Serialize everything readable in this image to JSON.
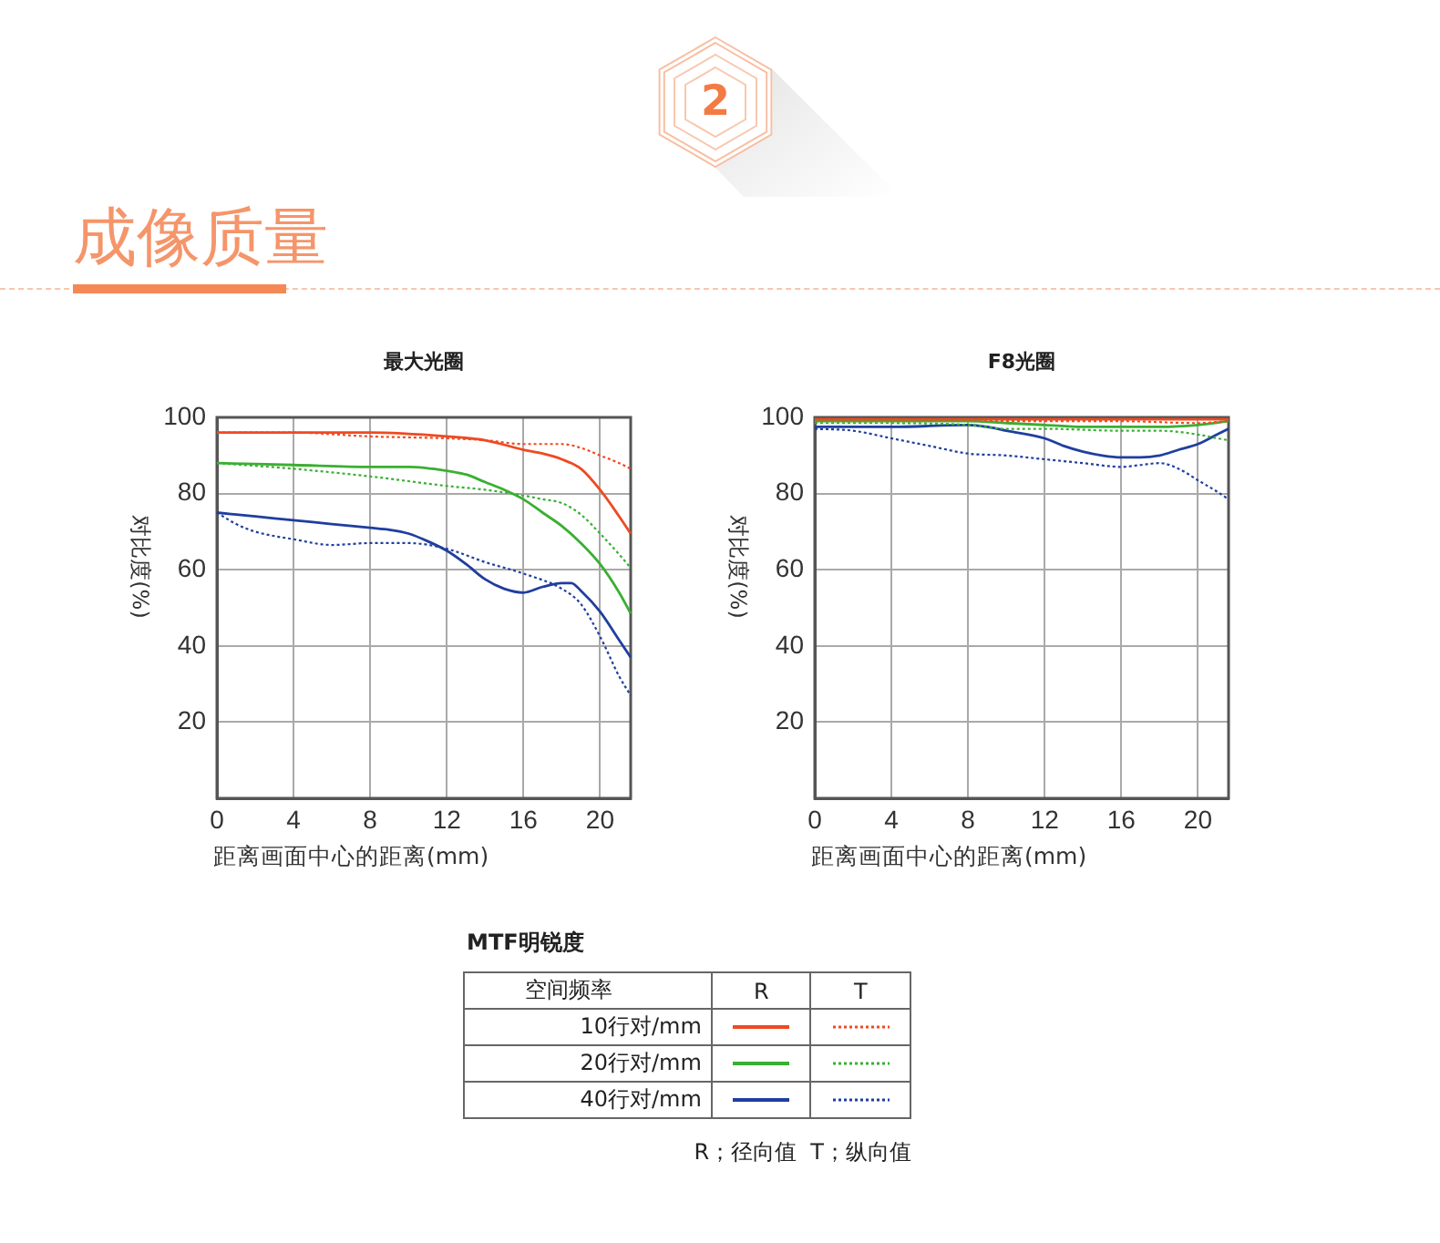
{
  "chart_data": [
    {
      "type": "other",
      "title": "成像质量",
      "annotations": [
        "2"
      ]
    },
    {
      "type": "line",
      "title": "最大光圈",
      "xlabel": "距离画面中心的距离(mm)",
      "ylabel": "对比度(%)",
      "legend_title": "MTF明锐度",
      "annotations": [
        "空间频率",
        "R",
        "T",
        "R；径向值  T；纵向值"
      ],
      "xlim": [
        0,
        21.6
      ],
      "ylim": [
        0,
        100
      ],
      "xticks": [
        0,
        4,
        8,
        12,
        16,
        20
      ],
      "yticks": [
        20,
        40,
        60,
        80,
        100
      ],
      "grid": true,
      "legend": "bottom right",
      "series": [
        {
          "name": "10行对/mm",
          "color": "#ee4a22",
          "line_style": "solid",
          "x": [
            0,
            4,
            8,
            12,
            14,
            16,
            17,
            18,
            19,
            20,
            21,
            21.6
          ],
          "values": [
            96,
            96,
            96,
            95,
            94,
            91.5,
            90.5,
            89,
            86.5,
            81,
            74,
            69.5
          ]
        },
        {
          "color": "#ee4a22",
          "line_style": "dotted",
          "x": [
            0,
            4,
            8,
            12,
            14,
            16,
            18,
            19,
            20,
            21,
            21.6
          ],
          "values": [
            96,
            96,
            95,
            94.5,
            94,
            93,
            93,
            92,
            90,
            88,
            86.5
          ]
        },
        {
          "name": "20行对/mm",
          "color": "#3aaf32",
          "line_style": "solid",
          "x": [
            0,
            4,
            8,
            10,
            12,
            13,
            14,
            15,
            16,
            17,
            18,
            19,
            20,
            21,
            21.6
          ],
          "values": [
            88,
            87.5,
            87,
            87,
            86,
            85,
            83,
            81,
            78.5,
            75,
            71.5,
            67,
            61.5,
            54,
            48.5
          ]
        },
        {
          "color": "#3aaf32",
          "line_style": "dotted",
          "x": [
            0,
            4,
            8,
            12,
            14,
            16,
            17,
            18,
            19,
            20,
            21,
            21.6
          ],
          "values": [
            88,
            86.5,
            84.5,
            82,
            81,
            79.5,
            78.5,
            77.5,
            74.5,
            69.5,
            64,
            60.5
          ]
        },
        {
          "name": "40行对/mm",
          "color": "#1f3e9e",
          "line_style": "solid",
          "x": [
            0,
            2,
            4,
            6,
            8,
            9,
            10,
            11,
            12,
            13,
            14,
            15,
            16,
            17,
            18,
            18.5,
            19,
            20,
            21,
            21.6
          ],
          "values": [
            75,
            74,
            73,
            72,
            71,
            70.5,
            69.5,
            67.5,
            65,
            61.5,
            57.5,
            55,
            54,
            55.5,
            56.5,
            56.5,
            54.5,
            49,
            41.5,
            37
          ]
        },
        {
          "color": "#1f3e9e",
          "line_style": "dotted",
          "x": [
            0,
            1,
            2,
            4,
            6,
            8,
            10,
            12,
            14,
            16,
            18,
            19,
            20,
            21,
            21.6
          ],
          "values": [
            75,
            72,
            70,
            68,
            66.5,
            67,
            67,
            65.5,
            62,
            59,
            55,
            51,
            42.5,
            32,
            27
          ]
        }
      ]
    },
    {
      "type": "line",
      "title": "F8光圈",
      "xlabel": "距离画面中心的距离(mm)",
      "ylabel": "对比度(%)",
      "xlim": [
        0,
        21.6
      ],
      "ylim": [
        0,
        100
      ],
      "xticks": [
        0,
        4,
        8,
        12,
        16,
        20
      ],
      "yticks": [
        20,
        40,
        60,
        80,
        100
      ],
      "grid": true,
      "series": [
        {
          "color": "#ee4a22",
          "line_style": "solid",
          "x": [
            0,
            8,
            12,
            16,
            20,
            21.6
          ],
          "values": [
            99.5,
            99.5,
            99.5,
            99.5,
            99.5,
            99.5
          ]
        },
        {
          "color": "#ee4a22",
          "line_style": "dotted",
          "x": [
            0,
            8,
            10,
            12,
            16,
            20,
            21.6
          ],
          "values": [
            99.5,
            99.5,
            99,
            99,
            99,
            98.5,
            99
          ]
        },
        {
          "color": "#3aaf32",
          "line_style": "solid",
          "x": [
            0,
            4,
            8,
            10,
            12,
            14,
            16,
            18,
            20,
            21.6
          ],
          "values": [
            99,
            99,
            99,
            98.5,
            98,
            97.5,
            97.5,
            97.5,
            98,
            99
          ]
        },
        {
          "color": "#3aaf32",
          "line_style": "dotted",
          "x": [
            0,
            4,
            8,
            10,
            12,
            16,
            18,
            20,
            21,
            21.6
          ],
          "values": [
            98.5,
            98.5,
            98,
            97,
            97,
            96.5,
            96.5,
            95.5,
            94.5,
            94
          ]
        },
        {
          "color": "#1f3e9e",
          "line_style": "solid",
          "x": [
            0,
            4,
            8,
            9,
            10,
            12,
            13,
            14,
            15,
            16,
            17,
            18,
            19,
            20,
            21,
            21.6
          ],
          "values": [
            97.5,
            97.5,
            98,
            97.5,
            96.5,
            94.5,
            92.5,
            91,
            90,
            89.5,
            89.5,
            90,
            91.5,
            93,
            95.5,
            97
          ]
        },
        {
          "color": "#1f3e9e",
          "line_style": "dotted",
          "x": [
            0,
            2,
            4,
            6,
            8,
            10,
            12,
            14,
            16,
            17,
            18,
            19,
            20,
            21,
            21.6
          ],
          "values": [
            97,
            96.5,
            94.5,
            92.5,
            90.5,
            90,
            89,
            88,
            87,
            87.5,
            88,
            86.5,
            83.5,
            80.5,
            78.5
          ]
        }
      ]
    }
  ]
}
